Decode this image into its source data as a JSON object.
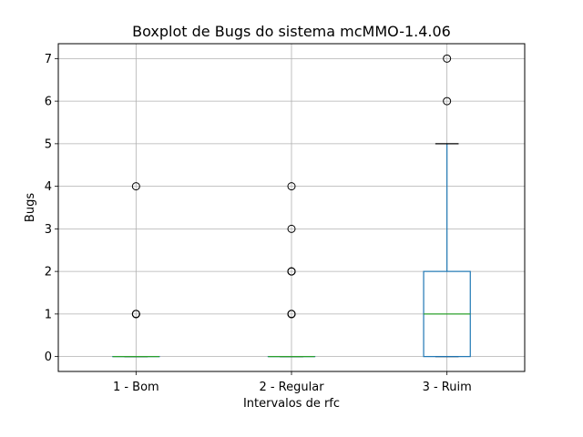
{
  "chart_data": {
    "type": "boxplot",
    "title": "Boxplot de Bugs do sistema mcMMO-1.4.06",
    "xlabel": "Intervalos de rfc",
    "ylabel": "Bugs",
    "ylim": [
      -0.35,
      7.35
    ],
    "yticks": [
      0,
      1,
      2,
      3,
      4,
      5,
      6,
      7
    ],
    "grid": true,
    "categories": [
      "1 - Bom",
      "2 - Regular",
      "3 - Ruim"
    ],
    "boxes": [
      {
        "category": "1 - Bom",
        "q1": 0,
        "median": 0,
        "q3": 0,
        "whisker_low": 0,
        "whisker_high": 0,
        "outliers": [
          1,
          1,
          1,
          4
        ]
      },
      {
        "category": "2 - Regular",
        "q1": 0,
        "median": 0,
        "q3": 0,
        "whisker_low": 0,
        "whisker_high": 0,
        "outliers": [
          1,
          1,
          1,
          2,
          2,
          2,
          3,
          4
        ]
      },
      {
        "category": "3 - Ruim",
        "q1": 0,
        "median": 1,
        "q3": 2,
        "whisker_low": 0,
        "whisker_high": 5,
        "outliers": [
          6,
          7
        ]
      }
    ],
    "colors": {
      "box": "#1f77b4",
      "median": "#2ca02c",
      "whisker_cap": "#000000",
      "grid": "#b0b0b0",
      "outlier": "#000000"
    }
  }
}
